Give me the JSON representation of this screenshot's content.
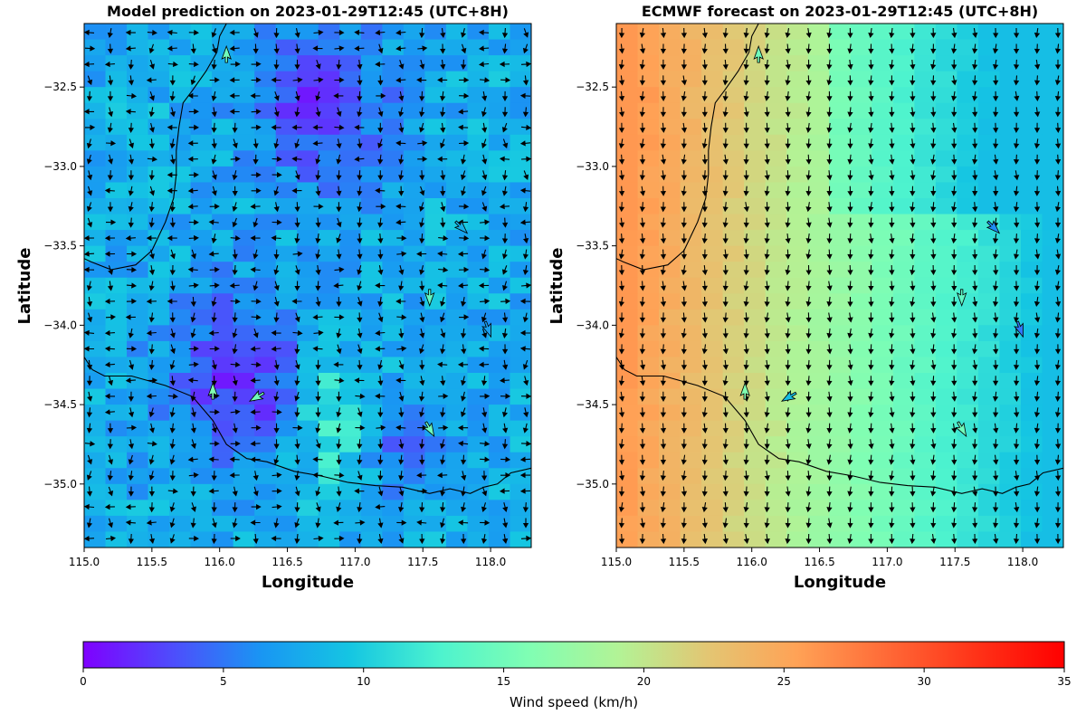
{
  "figure": {
    "colorbar": {
      "label": "Wind speed (km/h)",
      "range": [
        0,
        35
      ],
      "ticks": [
        "0",
        "5",
        "10",
        "15",
        "20",
        "25",
        "30",
        "35"
      ],
      "colors": [
        "#7f00ff",
        "#4e4dfc",
        "#1996f3",
        "#15c6e2",
        "#4df3ce",
        "#80feb3",
        "#b2f396",
        "#e3c673",
        "#ffa256",
        "#ff6a37",
        "#ff3318",
        "#ff0000"
      ]
    }
  },
  "chart_data": [
    {
      "type": "heatmap",
      "title": "Model prediction on 2023-01-29T12:45 (UTC+8H)",
      "xlabel": "Longitude",
      "ylabel": "Latitude",
      "xlim": [
        115.0,
        118.3
      ],
      "ylim": [
        -35.4,
        -32.1
      ],
      "xticks": [
        "115.0",
        "115.5",
        "116.0",
        "116.5",
        "117.0",
        "117.5",
        "118.0"
      ],
      "yticks": [
        "-32.5",
        "-33.0",
        "-33.5",
        "-34.0",
        "-34.5",
        "-35.0"
      ],
      "wind_speed_summary_kmh": {
        "min": 1,
        "max": 14,
        "typical": 8
      },
      "highlighted_stations": [
        {
          "lon": 116.05,
          "lat": -32.3,
          "speed": 15,
          "dir": 0
        },
        {
          "lon": 117.78,
          "lat": -33.38,
          "speed": 8,
          "dir": 135
        },
        {
          "lon": 117.55,
          "lat": -33.82,
          "speed": 14,
          "dir": 180
        },
        {
          "lon": 117.98,
          "lat": -34.02,
          "speed": 7,
          "dir": 160
        },
        {
          "lon": 115.95,
          "lat": -34.42,
          "speed": 16,
          "dir": 0
        },
        {
          "lon": 116.28,
          "lat": -34.45,
          "speed": 15,
          "dir": 240
        },
        {
          "lon": 117.55,
          "lat": -34.65,
          "speed": 15,
          "dir": 150
        }
      ]
    },
    {
      "type": "heatmap",
      "title": "ECMWF forecast on 2023-01-29T12:45 (UTC+8H)",
      "xlabel": "Longitude",
      "ylabel": "Latitude",
      "xlim": [
        115.0,
        118.3
      ],
      "ylim": [
        -35.4,
        -32.1
      ],
      "xticks": [
        "115.0",
        "115.5",
        "116.0",
        "116.5",
        "117.0",
        "117.5",
        "118.0"
      ],
      "yticks": [
        "-32.5",
        "-33.0",
        "-33.5",
        "-34.0",
        "-34.5",
        "-35.0"
      ],
      "wind_speed_summary_kmh": {
        "min": 9,
        "max": 26,
        "typical": 14
      },
      "highlighted_stations": [
        {
          "lon": 116.05,
          "lat": -32.3,
          "speed": 15,
          "dir": 0
        },
        {
          "lon": 117.78,
          "lat": -33.38,
          "speed": 6,
          "dir": 135
        },
        {
          "lon": 117.55,
          "lat": -33.82,
          "speed": 14,
          "dir": 180
        },
        {
          "lon": 117.98,
          "lat": -34.02,
          "speed": 5,
          "dir": 160
        },
        {
          "lon": 115.95,
          "lat": -34.42,
          "speed": 16,
          "dir": 0
        },
        {
          "lon": 116.28,
          "lat": -34.45,
          "speed": 9,
          "dir": 240
        },
        {
          "lon": 117.55,
          "lat": -34.65,
          "speed": 15,
          "dir": 150
        }
      ]
    }
  ]
}
